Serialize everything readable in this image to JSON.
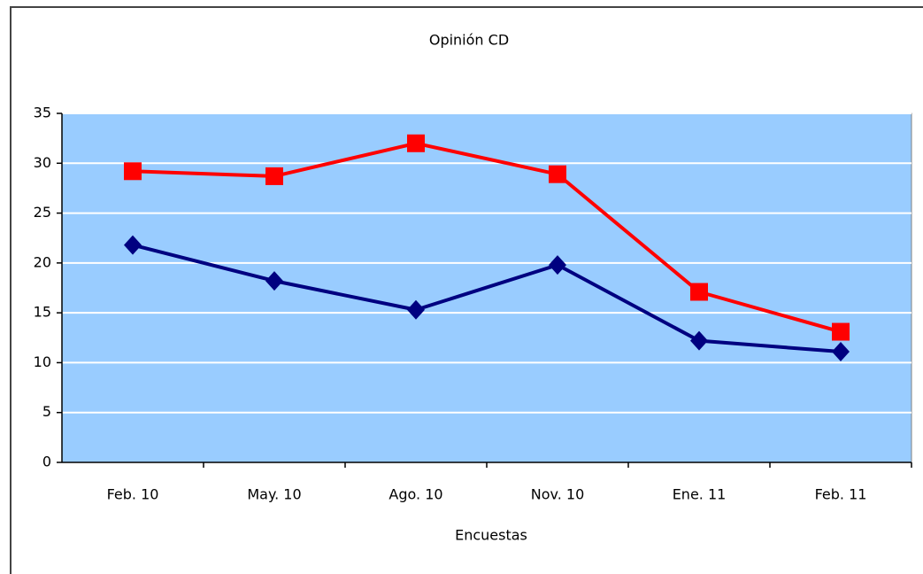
{
  "chart_data": {
    "type": "line",
    "title": "Opinión CD",
    "x_label": "Encuestas",
    "categories": [
      "Feb. 10",
      "May. 10",
      "Ago. 10",
      "Nov. 10",
      "Ene. 11",
      "Feb. 11"
    ],
    "series": [
      {
        "color": "#ff0000",
        "marker": "square",
        "values": [
          29.2,
          28.7,
          32.0,
          28.9,
          17.1,
          13.1
        ]
      },
      {
        "color": "#000080",
        "marker": "diamond",
        "values": [
          21.8,
          18.2,
          15.3,
          19.8,
          12.2,
          11.1
        ]
      }
    ],
    "ylim": [
      0,
      35
    ],
    "yticks": [
      0,
      5,
      10,
      15,
      20,
      25,
      30,
      35
    ],
    "grid": true,
    "plot_background": "#99ccff"
  }
}
